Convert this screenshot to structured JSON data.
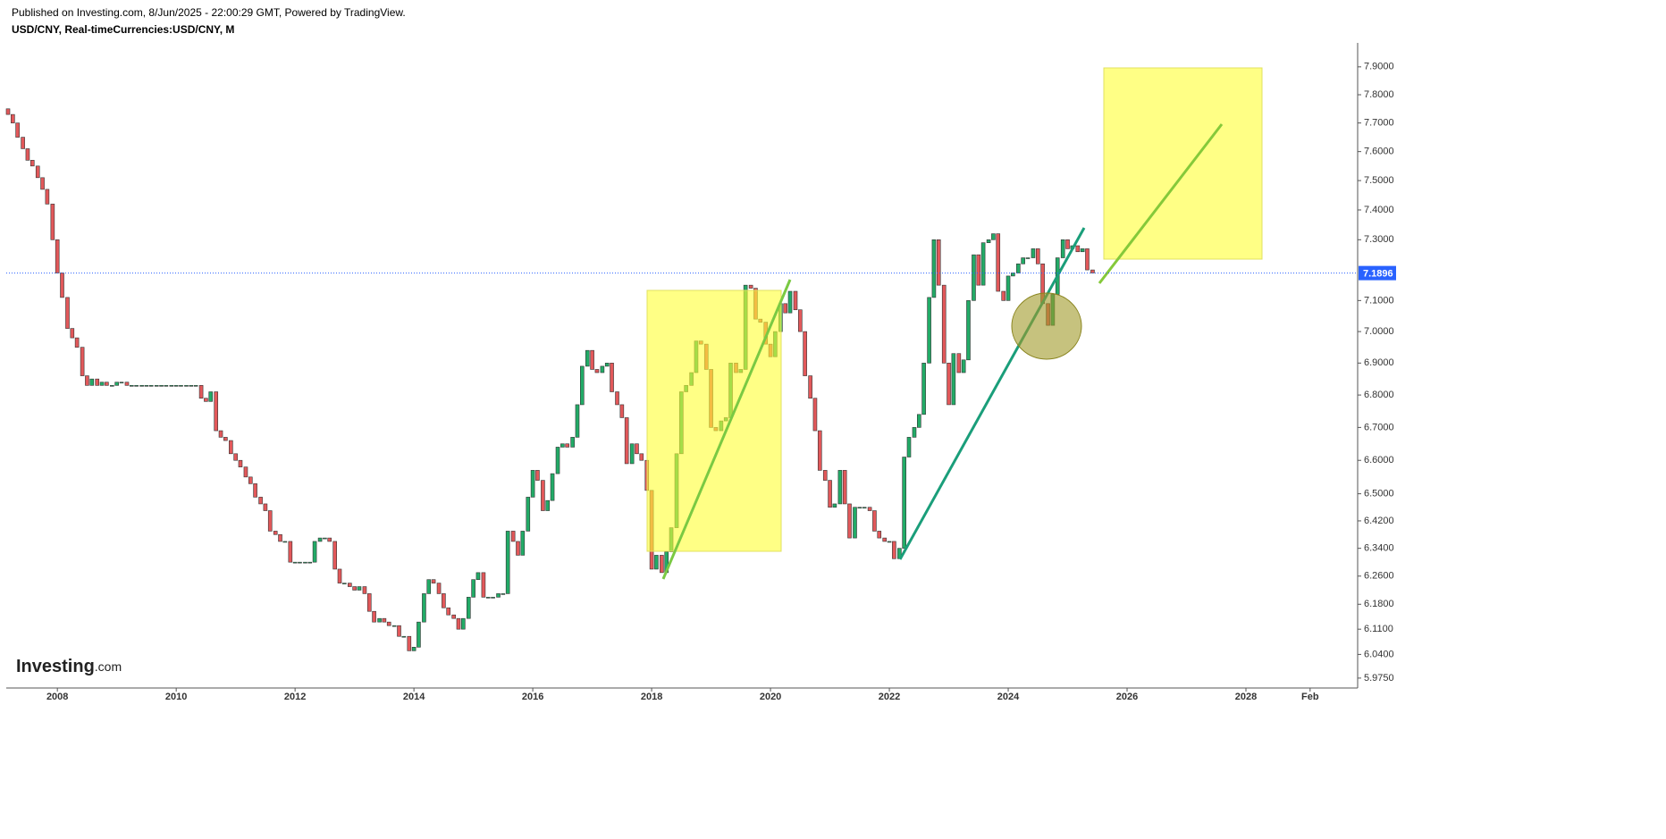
{
  "header": {
    "published": "Published on Investing.com, 8/Jun/2025 - 22:00:29 GMT, Powered by TradingView.",
    "symbol": "USD/CNY, Real-timeCurrencies:USD/CNY, M"
  },
  "logo": {
    "brand": "Investing",
    "suffix": ".com"
  },
  "chart_data": {
    "type": "candlestick",
    "log_scale": true,
    "up_color": "#22ab67",
    "down_color": "#e2585a",
    "xlim": [
      2007.14,
      2029.88
    ],
    "ylim": [
      5.948,
      7.987
    ],
    "xticks": [
      2008,
      2010,
      2012,
      2014,
      2016,
      2018,
      2020,
      2022,
      2024,
      2026,
      2028,
      {
        "value": 2029.08,
        "label": "Feb"
      }
    ],
    "yticks": [
      {
        "value": 7.9,
        "label": "7.9000"
      },
      {
        "value": 7.8,
        "label": "7.8000"
      },
      {
        "value": 7.7,
        "label": "7.7000"
      },
      {
        "value": 7.6,
        "label": "7.6000"
      },
      {
        "value": 7.5,
        "label": "7.5000"
      },
      {
        "value": 7.4,
        "label": "7.4000"
      },
      {
        "value": 7.3,
        "label": "7.3000"
      },
      {
        "value": 7.1,
        "label": "7.1000"
      },
      {
        "value": 7.0,
        "label": "7.0000"
      },
      {
        "value": 6.9,
        "label": "6.9000"
      },
      {
        "value": 6.8,
        "label": "6.8000"
      },
      {
        "value": 6.7,
        "label": "6.7000"
      },
      {
        "value": 6.6,
        "label": "6.6000"
      },
      {
        "value": 6.5,
        "label": "6.5000"
      },
      {
        "value": 6.42,
        "label": "6.4200"
      },
      {
        "value": 6.34,
        "label": "6.3400"
      },
      {
        "value": 6.26,
        "label": "6.2600"
      },
      {
        "value": 6.18,
        "label": "6.1800"
      },
      {
        "value": 6.11,
        "label": "6.1100"
      },
      {
        "value": 6.04,
        "label": "6.0400"
      },
      {
        "value": 5.975,
        "label": "5.9750"
      }
    ],
    "last_price": 7.1896,
    "x": [
      2007.17,
      2007.25,
      2007.33,
      2007.42,
      2007.5,
      2007.58,
      2007.67,
      2007.75,
      2007.83,
      2007.92,
      2008,
      2008.08,
      2008.17,
      2008.25,
      2008.33,
      2008.42,
      2008.5,
      2008.58,
      2008.67,
      2008.75,
      2008.83,
      2008.92,
      2009,
      2009.08,
      2009.17,
      2009.25,
      2009.33,
      2009.42,
      2009.5,
      2009.58,
      2009.67,
      2009.75,
      2009.83,
      2009.92,
      2010,
      2010.08,
      2010.17,
      2010.25,
      2010.33,
      2010.42,
      2010.5,
      2010.58,
      2010.67,
      2010.75,
      2010.83,
      2010.92,
      2011,
      2011.08,
      2011.17,
      2011.25,
      2011.33,
      2011.42,
      2011.5,
      2011.58,
      2011.67,
      2011.75,
      2011.83,
      2011.92,
      2012,
      2012.08,
      2012.17,
      2012.25,
      2012.33,
      2012.42,
      2012.5,
      2012.58,
      2012.67,
      2012.75,
      2012.83,
      2012.92,
      2013,
      2013.08,
      2013.17,
      2013.25,
      2013.33,
      2013.42,
      2013.5,
      2013.58,
      2013.67,
      2013.75,
      2013.83,
      2013.92,
      2014,
      2014.08,
      2014.17,
      2014.25,
      2014.33,
      2014.42,
      2014.5,
      2014.58,
      2014.67,
      2014.75,
      2014.83,
      2014.92,
      2015,
      2015.08,
      2015.17,
      2015.25,
      2015.33,
      2015.42,
      2015.5,
      2015.58,
      2015.67,
      2015.75,
      2015.83,
      2015.92,
      2016,
      2016.08,
      2016.17,
      2016.25,
      2016.33,
      2016.42,
      2016.5,
      2016.58,
      2016.67,
      2016.75,
      2016.83,
      2016.92,
      2017,
      2017.08,
      2017.17,
      2017.25,
      2017.33,
      2017.42,
      2017.5,
      2017.58,
      2017.67,
      2017.75,
      2017.83,
      2017.92,
      2018,
      2018.08,
      2018.17,
      2018.25,
      2018.33,
      2018.42,
      2018.5,
      2018.58,
      2018.67,
      2018.75,
      2018.83,
      2018.92,
      2019,
      2019.08,
      2019.17,
      2019.25,
      2019.33,
      2019.42,
      2019.5,
      2019.58,
      2019.67,
      2019.75,
      2019.83,
      2019.92,
      2020,
      2020.08,
      2020.17,
      2020.25,
      2020.33,
      2020.42,
      2020.5,
      2020.58,
      2020.67,
      2020.75,
      2020.83,
      2020.92,
      2021,
      2021.08,
      2021.17,
      2021.25,
      2021.33,
      2021.42,
      2021.5,
      2021.58,
      2021.67,
      2021.75,
      2021.83,
      2021.92,
      2022,
      2022.08,
      2022.17,
      2022.25,
      2022.33,
      2022.42,
      2022.5,
      2022.58,
      2022.67,
      2022.75,
      2022.83,
      2022.92,
      2023,
      2023.08,
      2023.17,
      2023.25,
      2023.33,
      2023.42,
      2023.5,
      2023.58,
      2023.67,
      2023.75,
      2023.83,
      2023.92,
      2024,
      2024.08,
      2024.17,
      2024.25,
      2024.33,
      2024.42,
      2024.5,
      2024.58,
      2024.67,
      2024.75,
      2024.83,
      2024.92,
      2025,
      2025.08,
      2025.17,
      2025.25,
      2025.33,
      2025.42
    ],
    "open": [
      7.75,
      7.73,
      7.7,
      7.65,
      7.61,
      7.57,
      7.55,
      7.51,
      7.47,
      7.42,
      7.3,
      7.19,
      7.11,
      7.01,
      6.98,
      6.95,
      6.86,
      6.83,
      6.85,
      6.83,
      6.84,
      6.83,
      6.83,
      6.84,
      6.84,
      6.83,
      6.83,
      6.83,
      6.83,
      6.83,
      6.83,
      6.83,
      6.83,
      6.83,
      6.83,
      6.83,
      6.83,
      6.83,
      6.83,
      6.83,
      6.79,
      6.78,
      6.81,
      6.69,
      6.67,
      6.66,
      6.62,
      6.6,
      6.58,
      6.55,
      6.53,
      6.49,
      6.47,
      6.45,
      6.39,
      6.38,
      6.36,
      6.36,
      6.3,
      6.3,
      6.3,
      6.3,
      6.3,
      6.36,
      6.37,
      6.37,
      6.36,
      6.28,
      6.24,
      6.24,
      6.23,
      6.22,
      6.23,
      6.21,
      6.16,
      6.13,
      6.14,
      6.13,
      6.12,
      6.12,
      6.09,
      6.09,
      6.05,
      6.06,
      6.13,
      6.21,
      6.25,
      6.24,
      6.21,
      6.17,
      6.15,
      6.14,
      6.11,
      6.14,
      6.2,
      6.25,
      6.27,
      6.2,
      6.2,
      6.2,
      6.21,
      6.21,
      6.39,
      6.36,
      6.32,
      6.39,
      6.49,
      6.57,
      6.54,
      6.45,
      6.48,
      6.56,
      6.64,
      6.65,
      6.64,
      6.67,
      6.77,
      6.89,
      6.94,
      6.88,
      6.87,
      6.89,
      6.9,
      6.81,
      6.77,
      6.73,
      6.59,
      6.65,
      6.62,
      6.6,
      6.51,
      6.28,
      6.32,
      6.27,
      6.33,
      6.4,
      6.62,
      6.81,
      6.83,
      6.87,
      6.97,
      6.96,
      6.88,
      6.7,
      6.69,
      6.72,
      6.73,
      6.9,
      6.87,
      6.88,
      7.15,
      7.14,
      7.04,
      7.03,
      6.96,
      6.92,
      7.0,
      7.09,
      7.06,
      7.13,
      7.07,
      7.0,
      6.86,
      6.79,
      6.69,
      6.57,
      6.54,
      6.46,
      6.47,
      6.57,
      6.47,
      6.37,
      6.46,
      6.46,
      6.46,
      6.45,
      6.39,
      6.37,
      6.36,
      6.36,
      6.31,
      6.34,
      6.61,
      6.67,
      6.7,
      6.74,
      6.9,
      7.11,
      7.3,
      7.15,
      6.9,
      6.77,
      6.93,
      6.87,
      6.91,
      7.1,
      7.25,
      7.15,
      7.29,
      7.3,
      7.32,
      7.13,
      7.1,
      7.18,
      7.19,
      7.22,
      7.24,
      7.24,
      7.27,
      7.22,
      7.09,
      7.02,
      7.12,
      7.24,
      7.3,
      7.27,
      7.28,
      7.26,
      7.27,
      7.2
    ],
    "close": [
      7.73,
      7.7,
      7.65,
      7.61,
      7.57,
      7.55,
      7.51,
      7.47,
      7.42,
      7.3,
      7.19,
      7.11,
      7.01,
      6.98,
      6.95,
      6.86,
      6.83,
      6.85,
      6.83,
      6.84,
      6.83,
      6.83,
      6.84,
      6.84,
      6.83,
      6.83,
      6.83,
      6.83,
      6.83,
      6.83,
      6.83,
      6.83,
      6.83,
      6.83,
      6.83,
      6.83,
      6.83,
      6.83,
      6.83,
      6.79,
      6.78,
      6.81,
      6.69,
      6.67,
      6.66,
      6.62,
      6.6,
      6.58,
      6.55,
      6.53,
      6.49,
      6.47,
      6.45,
      6.39,
      6.38,
      6.36,
      6.36,
      6.3,
      6.3,
      6.3,
      6.3,
      6.3,
      6.36,
      6.37,
      6.37,
      6.36,
      6.28,
      6.24,
      6.24,
      6.23,
      6.22,
      6.23,
      6.21,
      6.16,
      6.13,
      6.14,
      6.13,
      6.12,
      6.12,
      6.09,
      6.09,
      6.05,
      6.06,
      6.13,
      6.21,
      6.25,
      6.24,
      6.21,
      6.17,
      6.15,
      6.14,
      6.11,
      6.14,
      6.2,
      6.25,
      6.27,
      6.2,
      6.2,
      6.2,
      6.21,
      6.21,
      6.39,
      6.36,
      6.32,
      6.39,
      6.49,
      6.57,
      6.54,
      6.45,
      6.48,
      6.56,
      6.64,
      6.65,
      6.64,
      6.67,
      6.77,
      6.89,
      6.94,
      6.88,
      6.87,
      6.89,
      6.9,
      6.81,
      6.77,
      6.73,
      6.59,
      6.65,
      6.62,
      6.6,
      6.51,
      6.28,
      6.32,
      6.27,
      6.33,
      6.4,
      6.62,
      6.81,
      6.83,
      6.87,
      6.97,
      6.96,
      6.88,
      6.7,
      6.69,
      6.72,
      6.73,
      6.9,
      6.87,
      6.88,
      7.15,
      7.14,
      7.04,
      7.03,
      6.96,
      6.92,
      7.0,
      7.09,
      7.06,
      7.13,
      7.07,
      7.0,
      6.86,
      6.79,
      6.69,
      6.57,
      6.54,
      6.46,
      6.47,
      6.57,
      6.47,
      6.37,
      6.46,
      6.46,
      6.46,
      6.45,
      6.39,
      6.37,
      6.36,
      6.36,
      6.31,
      6.34,
      6.61,
      6.67,
      6.7,
      6.74,
      6.9,
      7.11,
      7.3,
      7.15,
      6.9,
      6.77,
      6.93,
      6.87,
      6.91,
      7.1,
      7.25,
      7.15,
      7.29,
      7.3,
      7.32,
      7.13,
      7.1,
      7.18,
      7.19,
      7.22,
      7.24,
      7.24,
      7.27,
      7.22,
      7.09,
      7.02,
      7.12,
      7.24,
      7.3,
      7.27,
      7.28,
      7.26,
      7.27,
      7.2,
      7.19
    ]
  }
}
